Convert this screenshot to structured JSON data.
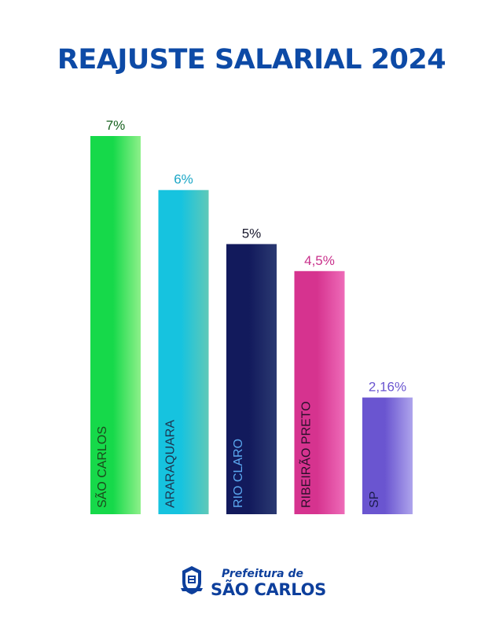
{
  "chart_data": {
    "type": "bar",
    "title": "REAJUSTE SALARIAL 2024",
    "categories": [
      "SÃO CARLOS",
      "ARARAQUARA",
      "RIO CLARO",
      "RIBEIRÃO PRETO",
      "SP"
    ],
    "values": [
      7,
      6,
      5,
      4.5,
      2.16
    ],
    "data_labels": [
      "7%",
      "6%",
      "5%",
      "4,5%",
      "2,16%"
    ],
    "ylim": [
      0,
      7
    ],
    "grid": false,
    "colors": [
      [
        "#16d94a",
        "#8ef08a"
      ],
      [
        "#16c3df",
        "#5fc9b8"
      ],
      [
        "#121a5c",
        "#2b3a72"
      ],
      [
        "#d6338f",
        "#ee6bb8"
      ],
      [
        "#6a55d0",
        "#aea4ec"
      ]
    ],
    "label_colors": [
      "#17621f",
      "#1aa6c6",
      "#1a1a2e",
      "#c9308b",
      "#6a55d0"
    ],
    "category_label_colors": [
      "#1c4a1c",
      "#1d3550",
      "#5ba8f0",
      "#2a0f2a",
      "#1b1b4a"
    ]
  },
  "footer": {
    "logo_line1": "Prefeitura de",
    "logo_line2": "SÃO CARLOS",
    "seal_icon": "city-seal-icon"
  }
}
